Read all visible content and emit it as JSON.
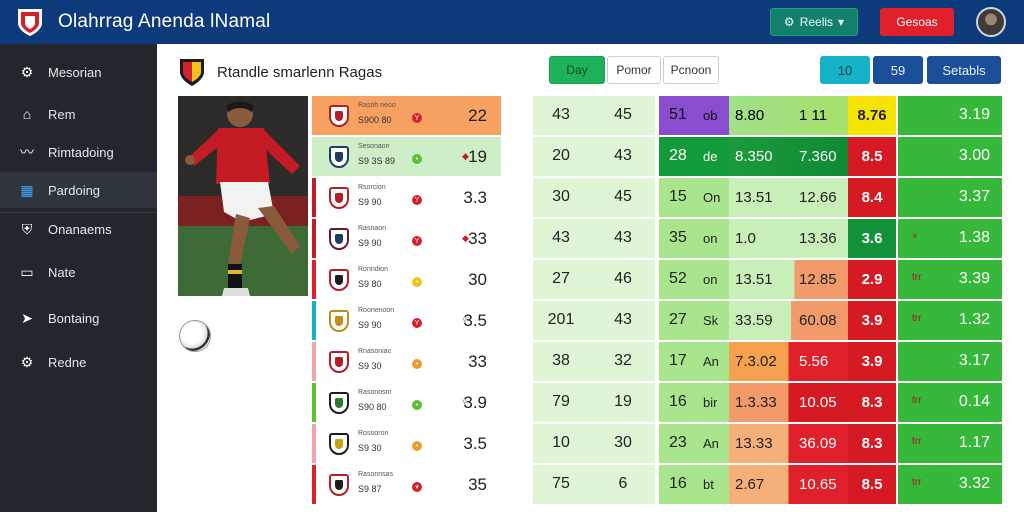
{
  "app": {
    "title": "Olahrrag Anenda lNamal"
  },
  "header": {
    "green_button": "Reelis",
    "red_button": "Gesoas"
  },
  "sidebar": {
    "items": [
      {
        "label": "Mesorian",
        "icon": "gear-icon"
      },
      {
        "label": "Rem",
        "icon": "home-icon"
      },
      {
        "label": "Rimtadoing",
        "icon": "chart-icon"
      },
      {
        "label": "Pardoing",
        "icon": "grid-icon"
      },
      {
        "label": "Onanaems",
        "icon": "shield-icon"
      },
      {
        "label": "Nate",
        "icon": "monitor-icon"
      },
      {
        "label": "Bontaing",
        "icon": "send-icon"
      },
      {
        "label": "Redne",
        "icon": "gear-icon"
      }
    ]
  },
  "main": {
    "title": "Rtandle smarlenn Ragas",
    "segments": [
      "Day",
      "Pomor",
      "Pcnoon"
    ],
    "right_buttons": [
      "10",
      "59",
      "Setabls"
    ]
  },
  "colors": {
    "topbar": "#0d3a7a",
    "sidebar": "#23272d",
    "accent_green": "#36b83a",
    "accent_red": "#e0202a"
  },
  "rows": [
    {
      "name": "Rasoh neoo",
      "sub": "S900 80",
      "val": "22",
      "a1": "43",
      "a2": "45",
      "b": "51",
      "u": "ob",
      "c1": "8.80",
      "c2": "1 11",
      "d": "8.76",
      "e": "3.19",
      "ek": ""
    },
    {
      "name": "Sesonaon",
      "sub": "S9 3S 89",
      "val": "19",
      "a1": "20",
      "a2": "43",
      "b": "28",
      "u": "de",
      "c1": "8.350",
      "c2": "7.360",
      "d": "8.5",
      "e": "3.00",
      "ek": ""
    },
    {
      "name": "Rsorcion",
      "sub": "S9 90",
      "val": "3.3",
      "a1": "30",
      "a2": "45",
      "b": "15",
      "u": "On",
      "c1": "13.51",
      "c2": "12.66",
      "d": "8.4",
      "e": "3.37",
      "ek": ""
    },
    {
      "name": "Rasnaon",
      "sub": "S9 90",
      "val": "33",
      "a1": "43",
      "a2": "43",
      "b": "35",
      "u": "on",
      "c1": "1.0",
      "c2": "13.36",
      "d": "3.6",
      "e": "1.38",
      "ek": "×"
    },
    {
      "name": "Ronndion",
      "sub": "S9 80",
      "val": "30",
      "a1": "27",
      "a2": "46",
      "b": "52",
      "u": "on",
      "c1": "13.51",
      "c2": "12.85",
      "d": "2.9",
      "e": "3.39",
      "ek": "trr"
    },
    {
      "name": "Roonenoon",
      "sub": "S9 90",
      "val": "3.5",
      "a1": "201",
      "a2": "43",
      "b": "27",
      "u": "Sk",
      "c1": "33.59",
      "c2": "60.08",
      "d": "3.9",
      "e": "1.32",
      "ek": "trr"
    },
    {
      "name": "Rnasoniac",
      "sub": "S9 30",
      "val": "33",
      "a1": "38",
      "a2": "32",
      "b": "17",
      "u": "An",
      "c1": "7.3.02",
      "c2": "5.56",
      "d": "3.9",
      "e": "3.17",
      "ek": ""
    },
    {
      "name": "Rasonosm",
      "sub": "S90 80",
      "val": "3.9",
      "a1": "79",
      "a2": "19",
      "b": "16",
      "u": "bir",
      "c1": "1.3.33",
      "c2": "10.05",
      "d": "8.3",
      "e": "0.14",
      "ek": "trr"
    },
    {
      "name": "Rosooron",
      "sub": "S9 30",
      "val": "3.5",
      "a1": "10",
      "a2": "30",
      "b": "23",
      "u": "An",
      "c1": "13.33",
      "c2": "36.09",
      "d": "8.3",
      "e": "1.17",
      "ek": "trr"
    },
    {
      "name": "Rasonnsas",
      "sub": "S9 87",
      "val": "35",
      "a1": "75",
      "a2": "6",
      "b": "16",
      "u": "bt",
      "c1": "2.67",
      "c2": "10.65",
      "d": "8.5",
      "e": "3.32",
      "ek": "trr"
    }
  ]
}
